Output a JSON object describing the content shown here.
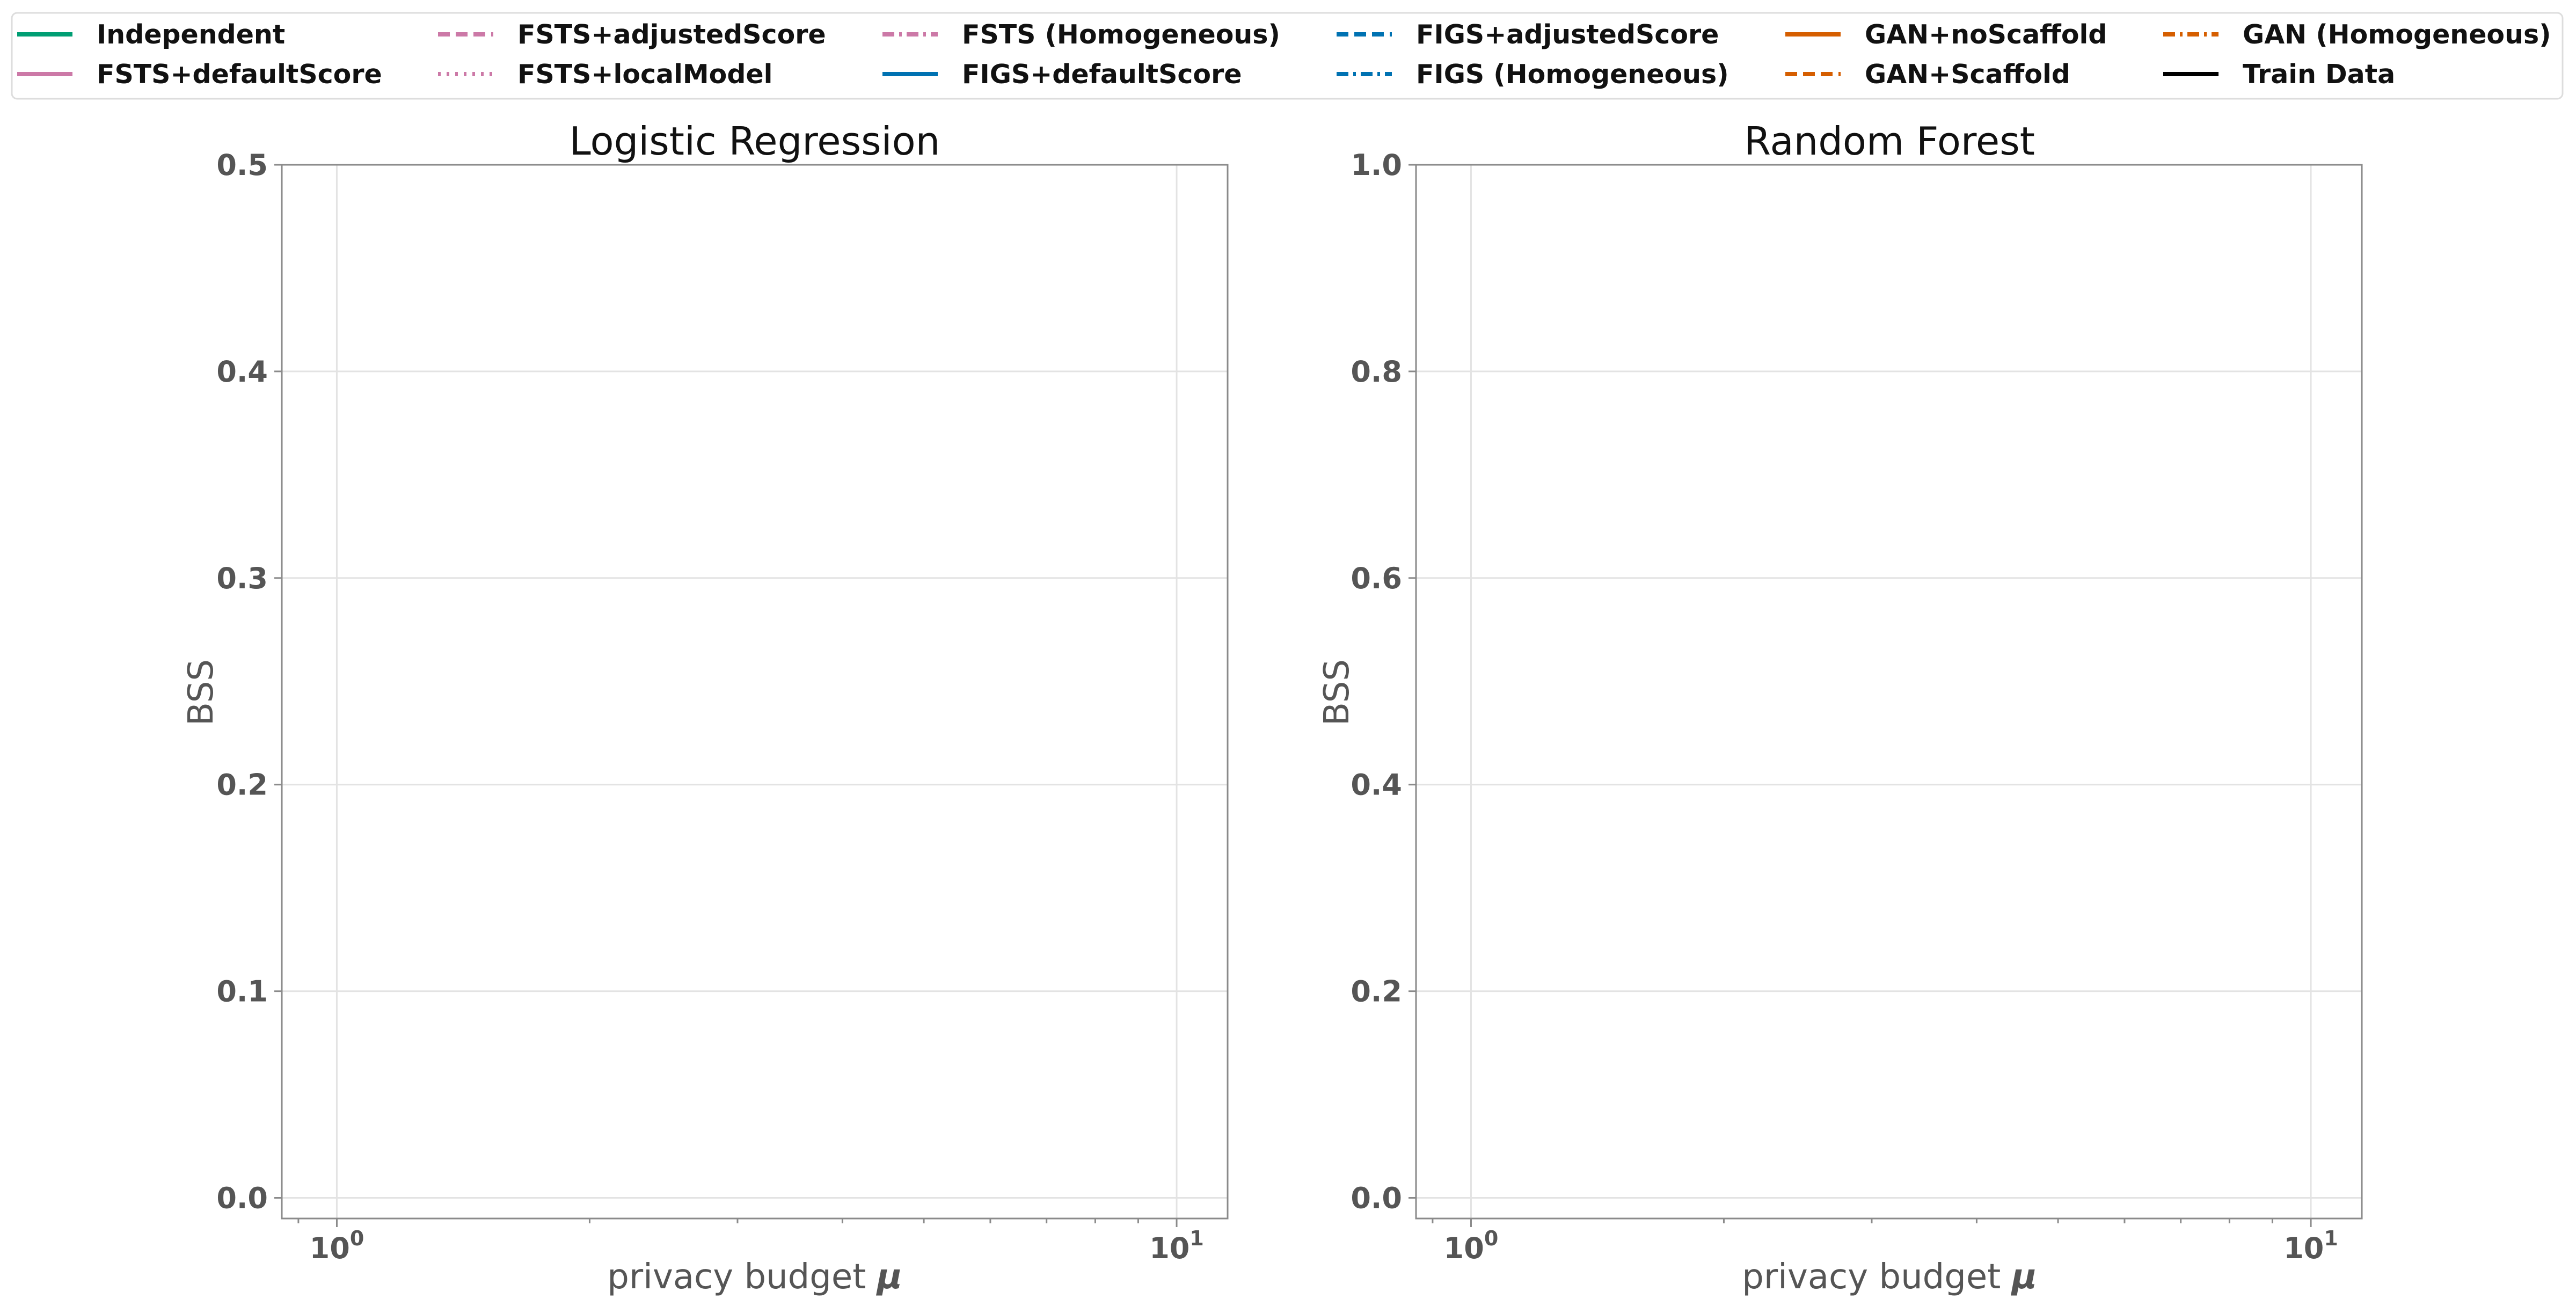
{
  "legend": {
    "items": [
      {
        "label": "Independent",
        "color": "#009E73",
        "dash": "solid",
        "width": 8
      },
      {
        "label": "FSTS+defaultScore",
        "color": "#CC79A7",
        "dash": "solid",
        "width": 8
      },
      {
        "label": "FSTS+adjustedScore",
        "color": "#CC79A7",
        "dash": "dashed",
        "width": 8
      },
      {
        "label": "FSTS+localModel",
        "color": "#CC79A7",
        "dash": "dotted",
        "width": 8
      },
      {
        "label": "FSTS (Homogeneous)",
        "color": "#CC79A7",
        "dash": "dashdot",
        "width": 8
      },
      {
        "label": "FIGS+defaultScore",
        "color": "#0072B2",
        "dash": "solid",
        "width": 8
      },
      {
        "label": "FIGS+adjustedScore",
        "color": "#0072B2",
        "dash": "dashed",
        "width": 8
      },
      {
        "label": "FIGS (Homogeneous)",
        "color": "#0072B2",
        "dash": "dashdot",
        "width": 8
      },
      {
        "label": "GAN+noScaffold",
        "color": "#D55E00",
        "dash": "solid",
        "width": 8
      },
      {
        "label": "GAN+Scaffold",
        "color": "#D55E00",
        "dash": "dashed",
        "width": 8
      },
      {
        "label": "GAN (Homogeneous)",
        "color": "#D55E00",
        "dash": "dashdot",
        "width": 8
      },
      {
        "label": "Train Data",
        "color": "#000000",
        "dash": "solid",
        "width": 8
      }
    ]
  },
  "chart_data": [
    {
      "type": "line",
      "title": "Logistic Regression",
      "xlabel_prefix": "privacy budget ",
      "xlabel_symbol": "μ",
      "ylabel": "BSS",
      "xscale": "log",
      "xlim": [
        0.86,
        11.5
      ],
      "ylim": [
        -0.01,
        0.5
      ],
      "xticks": [
        1,
        10
      ],
      "xtick_labels": [
        {
          "base": "10",
          "exp": "0"
        },
        {
          "base": "10",
          "exp": "1"
        }
      ],
      "yticks": [
        0.0,
        0.1,
        0.2,
        0.3,
        0.4,
        0.5
      ],
      "ytick_labels": [
        "0.0",
        "0.1",
        "0.2",
        "0.3",
        "0.4",
        "0.5"
      ],
      "grid": true,
      "series": []
    },
    {
      "type": "line",
      "title": "Random Forest",
      "xlabel_prefix": "privacy budget ",
      "xlabel_symbol": "μ",
      "ylabel": "BSS",
      "xscale": "log",
      "xlim": [
        0.86,
        11.5
      ],
      "ylim": [
        -0.02,
        1.0
      ],
      "xticks": [
        1,
        10
      ],
      "xtick_labels": [
        {
          "base": "10",
          "exp": "0"
        },
        {
          "base": "10",
          "exp": "1"
        }
      ],
      "yticks": [
        0.0,
        0.2,
        0.4,
        0.6,
        0.8,
        1.0
      ],
      "ytick_labels": [
        "0.0",
        "0.2",
        "0.4",
        "0.6",
        "0.8",
        "1.0"
      ],
      "grid": true,
      "series": []
    }
  ]
}
